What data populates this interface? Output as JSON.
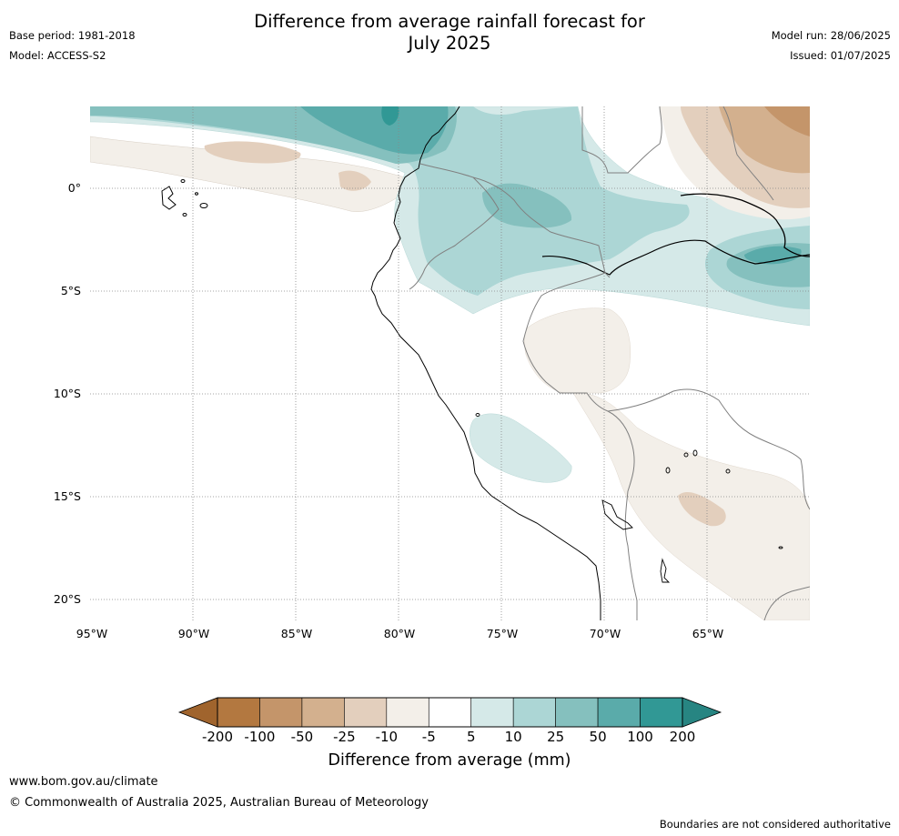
{
  "header": {
    "title_line1": "Difference from average rainfall forecast for",
    "title_line2": "July 2025",
    "base_period": "Base period: 1981-2018",
    "model": "Model: ACCESS-S2",
    "model_run": "Model run: 28/06/2025",
    "issued": "Issued: 01/07/2025"
  },
  "map": {
    "lat_labels": [
      "0°",
      "5°S",
      "10°S",
      "15°S",
      "20°S"
    ],
    "lon_labels": [
      "95°W",
      "90°W",
      "85°W",
      "80°W",
      "75°W",
      "70°W",
      "65°W"
    ],
    "land_color": "#ffffff",
    "coast_color": "#000000",
    "border_color": "#808080"
  },
  "colorbar": {
    "title": "Difference from average (mm)",
    "ticks": [
      "-200",
      "-100",
      "-50",
      "-25",
      "-10",
      "-5",
      "5",
      "10",
      "25",
      "50",
      "100",
      "200"
    ],
    "colors": [
      "#a0642d",
      "#b37840",
      "#c4956a",
      "#d3b08e",
      "#e3cfbd",
      "#f3efe9",
      "#ffffff",
      "#d5e9e8",
      "#acd6d5",
      "#85c0be",
      "#5aabaa",
      "#319895",
      "#278582"
    ]
  },
  "footer": {
    "url": "www.bom.gov.au/climate",
    "copyright": "© Commonwealth of Australia 2025, Australian Bureau of Meteorology",
    "note": "Boundaries are not considered authoritative"
  }
}
